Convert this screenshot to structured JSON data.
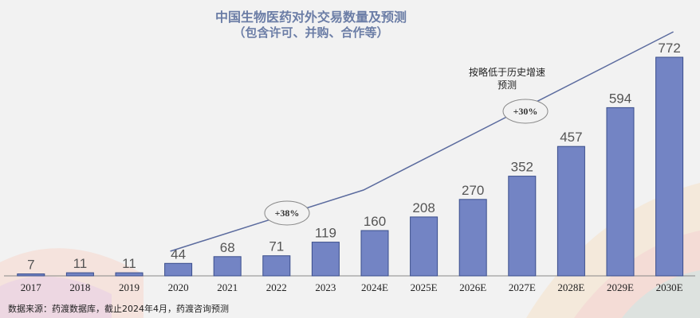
{
  "chart_data": {
    "type": "bar",
    "title": "中国生物医药对外交易数量及预测",
    "subtitle": "（包含许可、并购、合作等）",
    "categories": [
      "2017",
      "2018",
      "2019",
      "2020",
      "2021",
      "2022",
      "2023",
      "2024E",
      "2025E",
      "2026E",
      "2027E",
      "2028E",
      "2029E",
      "2030E"
    ],
    "values": [
      7,
      11,
      11,
      44,
      68,
      71,
      119,
      160,
      208,
      270,
      352,
      457,
      594,
      772
    ],
    "value_labels": [
      "7",
      "11",
      "11",
      "44",
      "68",
      "71",
      "119",
      "160",
      "208",
      "270",
      "352",
      "457",
      "594",
      "772"
    ],
    "ylim": [
      0,
      800
    ],
    "bar_color": "#7384c4",
    "bar_edge_color": "#3a4e8c",
    "grid": false,
    "trend_line": {
      "color": "#5b6b9e",
      "annotations": [
        {
          "label": "+38%",
          "segment": "2020-2024E"
        },
        {
          "label": "+30%",
          "segment": "2024E-2030E"
        }
      ],
      "note_line1": "按略低于历史增速",
      "note_line2": "预测"
    }
  },
  "footer": {
    "source": "数据来源：药渡数据库，截止2024年4月，药渡咨询预测"
  }
}
